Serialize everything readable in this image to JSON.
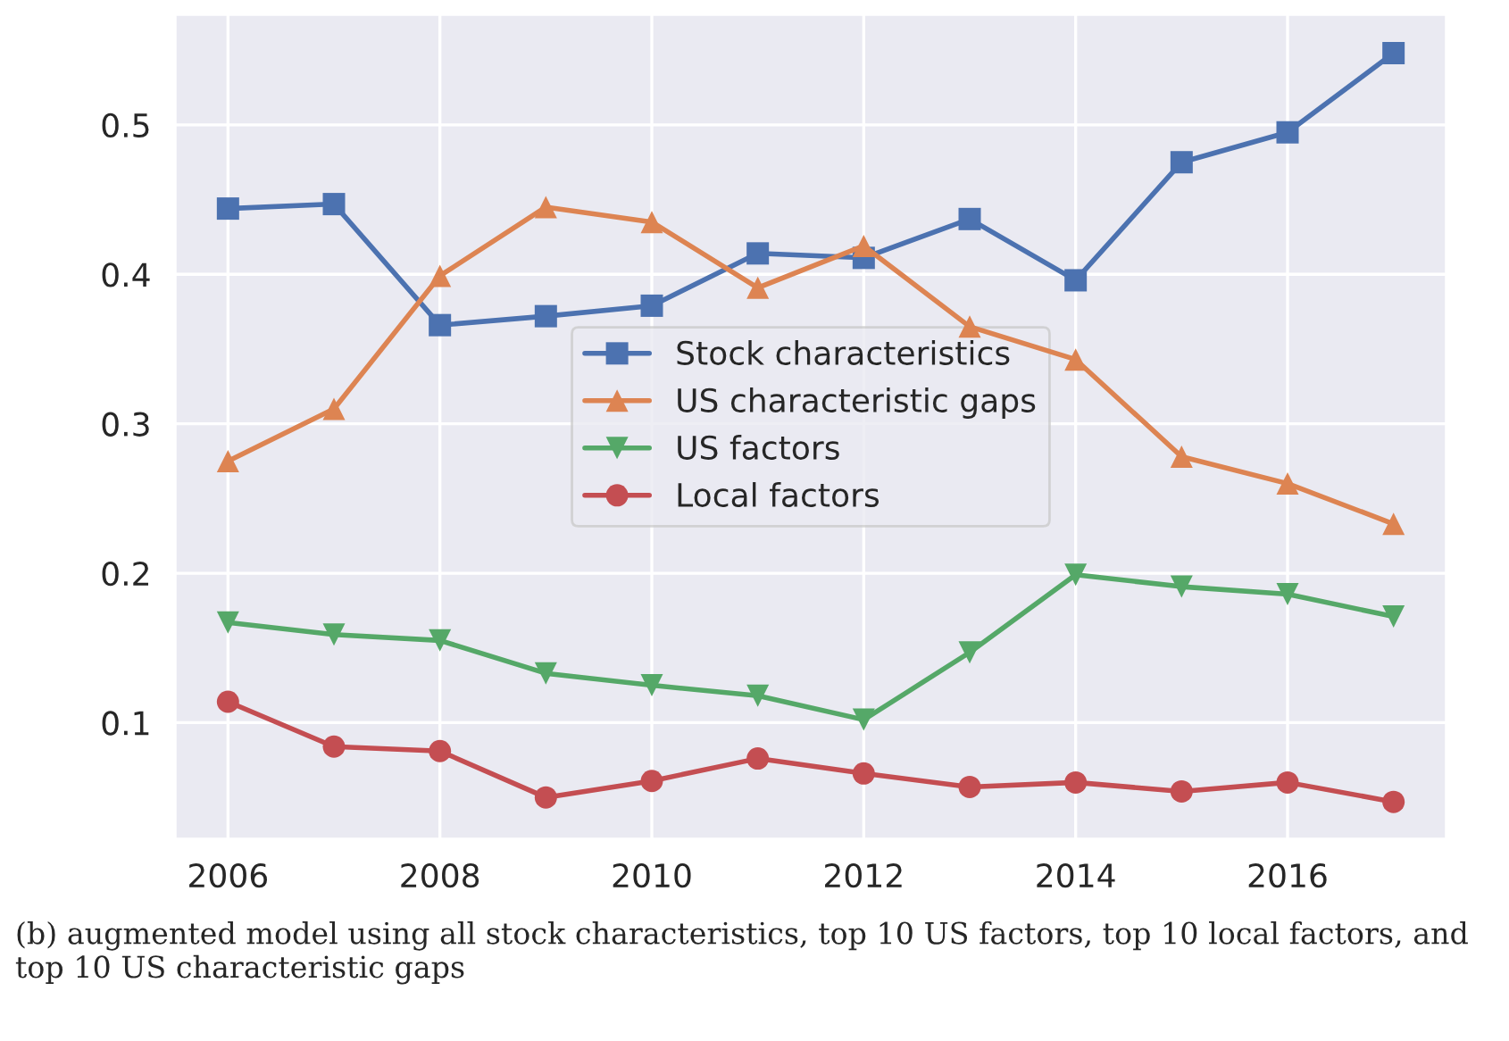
{
  "chart_data": {
    "type": "line",
    "x": [
      2006,
      2007,
      2008,
      2009,
      2010,
      2011,
      2012,
      2013,
      2014,
      2015,
      2016,
      2017
    ],
    "series": [
      {
        "name": "Stock characteristics",
        "color": "#4c72b0",
        "marker": "square",
        "values": [
          0.444,
          0.447,
          0.366,
          0.372,
          0.379,
          0.414,
          0.411,
          0.437,
          0.396,
          0.475,
          0.495,
          0.548
        ]
      },
      {
        "name": "US characteristic gaps",
        "color": "#dd8452",
        "marker": "triangle",
        "values": [
          0.275,
          0.31,
          0.399,
          0.445,
          0.435,
          0.391,
          0.419,
          0.365,
          0.343,
          0.278,
          0.26,
          0.233
        ]
      },
      {
        "name": "US factors",
        "color": "#55a868",
        "marker": "triangle_down",
        "values": [
          0.167,
          0.159,
          0.155,
          0.133,
          0.125,
          0.118,
          0.102,
          0.147,
          0.199,
          0.191,
          0.186,
          0.171
        ]
      },
      {
        "name": "Local factors",
        "color": "#c44e52",
        "marker": "circle",
        "values": [
          0.114,
          0.084,
          0.081,
          0.05,
          0.061,
          0.076,
          0.066,
          0.057,
          0.06,
          0.054,
          0.06,
          0.047
        ]
      }
    ],
    "xlim": [
      2005.5,
      2017.5
    ],
    "xticks": [
      2006,
      2008,
      2010,
      2012,
      2014,
      2016
    ],
    "ylim": [
      0.022,
      0.574
    ],
    "yticks": [
      0.1,
      0.2,
      0.3,
      0.4,
      0.5
    ],
    "grid": true,
    "legend": "center",
    "line_style": "solid",
    "annotations": [
      "(b) augmented model using all stock characteristics, top 10 US factors, top 10 local factors, and top 10 US characteristic gaps"
    ]
  }
}
